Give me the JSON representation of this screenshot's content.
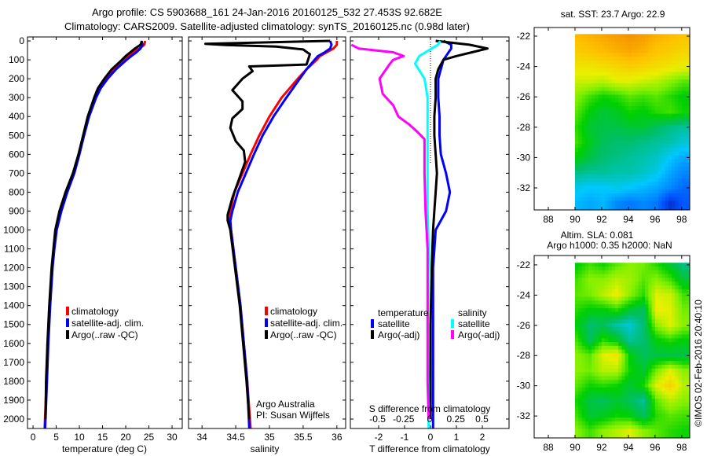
{
  "title": {
    "line1": "Argo profile: CS 5903688_161 24-Jan-2016 20160125_532 27.453S 92.682E",
    "line2": "Climatology: CARS2009. Satellite-adjusted climatology: synTS_20160125.nc (0.98d later)"
  },
  "colors": {
    "climatology": "#ff0000",
    "satellite": "#0000ff",
    "argo": "#000000",
    "s_satellite": "#00ffff",
    "s_argo": "#ff00ff"
  },
  "chart_data": [
    {
      "type": "line",
      "name": "temperature-profile",
      "xlabel": "temperature (deg C)",
      "ylabel": "depth",
      "xlim": [
        -1.2,
        32.2
      ],
      "ylim": [
        -21,
        2050
      ],
      "xticks": [
        0,
        5,
        10,
        15,
        20,
        25,
        30
      ],
      "yticks": [
        0,
        100,
        200,
        300,
        400,
        500,
        600,
        700,
        800,
        900,
        1000,
        1100,
        1200,
        1300,
        1400,
        1500,
        1600,
        1700,
        1800,
        1900,
        2000
      ],
      "legend": [
        "climatology",
        "satellite-adj. clim.",
        "Argo(..raw -QC)"
      ],
      "series": [
        {
          "name": "climatology",
          "color": "#ff0000",
          "depth": [
            0,
            20,
            40,
            60,
            80,
            100,
            150,
            200,
            250,
            300,
            400,
            500,
            600,
            700,
            800,
            900,
            1000,
            1100,
            1200,
            1400,
            1600,
            1800,
            2050
          ],
          "values": [
            24.2,
            24,
            23,
            21.5,
            20.5,
            19.5,
            17.3,
            15.6,
            14.2,
            13.3,
            11.9,
            10.9,
            9.9,
            8.7,
            7.2,
            5.9,
            4.9,
            4.5,
            4.1,
            3.6,
            3.2,
            2.9,
            2.5
          ]
        },
        {
          "name": "satellite-adj. clim.",
          "color": "#0000ff",
          "depth": [
            0,
            20,
            40,
            60,
            80,
            100,
            150,
            200,
            250,
            300,
            400,
            500,
            600,
            700,
            800,
            900,
            1000,
            1100,
            1200,
            1400,
            1600,
            1800,
            2050
          ],
          "values": [
            23.4,
            23.6,
            23.2,
            22.3,
            21.2,
            20.2,
            17.9,
            16.1,
            14.6,
            13.6,
            12.1,
            11.0,
            10.0,
            8.9,
            7.4,
            6.1,
            5.1,
            4.6,
            4.2,
            3.7,
            3.3,
            3.0,
            2.6
          ]
        },
        {
          "name": "Argo(..raw -QC)",
          "color": "#000000",
          "depth": [
            0,
            20,
            40,
            60,
            80,
            100,
            150,
            200,
            250,
            300,
            400,
            500,
            600,
            700,
            800,
            900,
            1000,
            1100,
            1200,
            1400,
            1600,
            1800,
            2000
          ],
          "values": [
            23.5,
            23.2,
            22.0,
            21.0,
            20.0,
            19.2,
            17.0,
            15.4,
            14.0,
            13.2,
            11.8,
            10.8,
            9.8,
            8.6,
            7.0,
            5.7,
            4.8,
            4.4,
            4.0,
            3.5,
            3.1,
            2.8,
            2.7
          ]
        }
      ]
    },
    {
      "type": "line",
      "name": "salinity-profile",
      "xlabel": "salinity",
      "xlim": [
        33.8,
        36.13
      ],
      "ylim": [
        -21,
        2050
      ],
      "xticks": [
        34,
        34.5,
        35,
        35.5,
        36
      ],
      "legend": [
        "climatology",
        "satellite-adj. clim.",
        "Argo(..raw -QC)"
      ],
      "annotation": [
        "Argo Australia",
        "PI: Susan Wijffels"
      ],
      "series": [
        {
          "name": "climatology",
          "color": "#ff0000",
          "depth": [
            0,
            20,
            40,
            60,
            80,
            100,
            150,
            200,
            250,
            300,
            400,
            500,
            600,
            700,
            800,
            900,
            950,
            1000,
            1200,
            1400,
            1600,
            1800,
            2050
          ],
          "values": [
            36.0,
            36.0,
            35.95,
            35.85,
            35.75,
            35.7,
            35.55,
            35.42,
            35.3,
            35.18,
            35.0,
            34.85,
            34.72,
            34.6,
            34.48,
            34.42,
            34.41,
            34.43,
            34.5,
            34.57,
            34.62,
            34.67,
            34.72
          ]
        },
        {
          "name": "satellite-adj. clim.",
          "color": "#0000ff",
          "depth": [
            0,
            20,
            40,
            60,
            80,
            100,
            150,
            200,
            250,
            300,
            400,
            500,
            600,
            700,
            800,
            900,
            950,
            1000,
            1200,
            1400,
            1600,
            1800,
            2050
          ],
          "values": [
            35.9,
            35.92,
            35.9,
            35.82,
            35.72,
            35.67,
            35.55,
            35.45,
            35.35,
            35.25,
            35.06,
            34.9,
            34.77,
            34.65,
            34.53,
            34.45,
            34.42,
            34.43,
            34.5,
            34.57,
            34.62,
            34.67,
            34.7
          ]
        },
        {
          "name": "Argo(..raw -QC)",
          "color": "#000000",
          "depth": [
            0,
            15,
            22,
            30,
            45,
            58,
            70,
            125,
            135,
            160,
            200,
            260,
            320,
            360,
            410,
            460,
            530,
            580,
            640,
            730,
            830,
            920,
            950,
            1000,
            1200,
            1400,
            1600,
            1800,
            2000
          ],
          "values": [
            35.9,
            34.05,
            34.35,
            35.1,
            35.5,
            35.55,
            35.6,
            35.55,
            34.7,
            34.75,
            34.6,
            34.45,
            34.6,
            34.6,
            34.45,
            34.42,
            34.5,
            34.62,
            34.64,
            34.55,
            34.45,
            34.38,
            34.38,
            34.42,
            34.49,
            34.56,
            34.61,
            34.66,
            34.7
          ]
        }
      ]
    },
    {
      "type": "line",
      "name": "difference-profile",
      "xlabel": "T difference from climatology",
      "x2label": "S difference from climatology",
      "xlim": [
        -3.09,
        3.03
      ],
      "x2lim": [
        -0.76,
        0.76
      ],
      "ylim": [
        -21,
        2050
      ],
      "xticks": [
        -2,
        -1,
        0,
        1,
        2
      ],
      "x2ticks": [
        -0.5,
        -0.25,
        0,
        0.25,
        0.5
      ],
      "legend": {
        "temperature_heading": "temperature",
        "salinity_heading": "salinity",
        "t_satellite": "satellite",
        "t_argo": "Argo(-adj)",
        "s_satellite": "satellite",
        "s_argo": "Argo(-adj)"
      },
      "series": [
        {
          "name": "T satellite",
          "axis": "T",
          "color": "#0000ff",
          "depth": [
            0,
            20,
            40,
            60,
            80,
            100,
            150,
            200,
            300,
            400,
            500,
            600,
            700,
            800,
            900,
            1000,
            1200,
            1500,
            1800,
            2050
          ],
          "values": [
            0.5,
            0.8,
            0.8,
            0.7,
            0.6,
            0.5,
            0.4,
            0.3,
            0.3,
            0.35,
            0.35,
            0.4,
            0.6,
            0.75,
            0.6,
            0.2,
            0.1,
            0.1,
            0.1,
            0.1
          ]
        },
        {
          "name": "T Argo(-adj)",
          "axis": "T",
          "color": "#000000",
          "depth": [
            0,
            20,
            40,
            60,
            80,
            100,
            150,
            200,
            300,
            400,
            500,
            600,
            700,
            800,
            900,
            1000,
            1200,
            1500,
            1800,
            2000
          ],
          "values": [
            0.2,
            1.5,
            2.2,
            1.6,
            1.0,
            0.5,
            0.3,
            0.2,
            0.2,
            0.15,
            0.15,
            0.2,
            0.25,
            0.2,
            0.15,
            0.1,
            0.05,
            0,
            0,
            0
          ]
        },
        {
          "name": "S satellite",
          "axis": "S",
          "color": "#00ffff",
          "depth": [
            0,
            20,
            40,
            80,
            120,
            200,
            300,
            500,
            700,
            900,
            1100,
            1500,
            2050
          ],
          "values": [
            0.1,
            0.08,
            0.02,
            -0.1,
            -0.14,
            -0.05,
            -0.02,
            -0.02,
            -0.02,
            -0.02,
            -0.01,
            -0.02,
            -0.01
          ]
        },
        {
          "name": "S Argo(-adj)",
          "axis": "S",
          "color": "#ff00ff",
          "depth": [
            20,
            40,
            60,
            80,
            100,
            120,
            200,
            280,
            340,
            400,
            440,
            480,
            520,
            600,
            700,
            900,
            1100,
            1400,
            1800,
            2000
          ],
          "values": [
            -0.75,
            -0.68,
            -0.35,
            -0.25,
            -0.35,
            -0.38,
            -0.48,
            -0.45,
            -0.35,
            -0.3,
            -0.2,
            -0.12,
            -0.05,
            -0.05,
            -0.05,
            -0.04,
            -0.02,
            -0.02,
            -0.02,
            -0.01
          ]
        }
      ]
    },
    {
      "type": "heatmap",
      "name": "sst-map",
      "title": "sat. SST: 23.7 Argo: 22.9",
      "xlim": [
        86.94,
        98.6
      ],
      "ylim": [
        -33.45,
        -21.43
      ],
      "xticks": [
        88,
        90,
        92,
        94,
        96,
        98
      ],
      "yticks": [
        -22,
        -24,
        -26,
        -28,
        -30,
        -32
      ],
      "lon": [
        90,
        91,
        92,
        93,
        94,
        95,
        96,
        97,
        98
      ],
      "lat": [
        -22,
        -23,
        -24,
        -25,
        -26,
        -27,
        -28,
        -29,
        -30,
        -31,
        -32,
        -33
      ],
      "vrange": [
        20.5,
        25.5
      ],
      "values": [
        [
          24.9,
          25.0,
          25.1,
          25.2,
          25.3,
          25.2,
          25.0,
          24.9,
          24.8
        ],
        [
          24.7,
          24.8,
          24.9,
          25.0,
          25.1,
          25.0,
          24.8,
          24.7,
          24.6
        ],
        [
          24.4,
          24.4,
          24.5,
          24.6,
          24.7,
          24.6,
          24.5,
          24.4,
          24.3
        ],
        [
          24.1,
          24.1,
          24.0,
          24.2,
          24.2,
          24.1,
          24.0,
          23.8,
          23.6
        ],
        [
          23.8,
          23.5,
          23.3,
          23.4,
          23.6,
          23.5,
          23.6,
          23.4,
          23.2
        ],
        [
          23.6,
          23.2,
          23.0,
          23.1,
          23.3,
          23.2,
          23.4,
          23.5,
          23.3
        ],
        [
          23.4,
          23.0,
          22.9,
          22.9,
          23.0,
          23.0,
          22.8,
          22.6,
          22.5
        ],
        [
          23.5,
          23.1,
          22.8,
          22.7,
          22.7,
          22.6,
          22.5,
          22.4,
          22.2
        ],
        [
          23.2,
          22.9,
          22.7,
          22.6,
          22.5,
          22.4,
          22.3,
          22.0,
          21.8
        ],
        [
          22.6,
          22.5,
          22.5,
          22.4,
          22.4,
          22.3,
          22.1,
          21.8,
          21.6
        ],
        [
          22.1,
          22.0,
          22.0,
          22.1,
          22.0,
          21.9,
          21.8,
          21.6,
          21.4
        ],
        [
          21.9,
          21.8,
          21.9,
          21.6,
          21.5,
          21.6,
          21.5,
          21.0,
          21.3
        ]
      ]
    },
    {
      "type": "heatmap",
      "name": "sla-map",
      "title": "Altim. SLA: 0.081",
      "subtitle": "Argo h1000: 0.35 h2000: NaN",
      "xlim": [
        86.94,
        98.6
      ],
      "ylim": [
        -33.45,
        -21.38
      ],
      "xticks": [
        88,
        90,
        92,
        94,
        96,
        98
      ],
      "yticks": [
        -22,
        -24,
        -26,
        -28,
        -30,
        -32
      ],
      "lon": [
        90,
        91,
        92,
        93,
        94,
        95,
        96,
        97,
        98
      ],
      "lat": [
        -22,
        -23,
        -24,
        -25,
        -26,
        -27,
        -28,
        -29,
        -30,
        -31,
        -32,
        -33
      ],
      "vrange": [
        -0.25,
        0.25
      ],
      "values": [
        [
          0.02,
          0.05,
          0.03,
          0.06,
          0.08,
          0.07,
          0.04,
          0.0,
          -0.04
        ],
        [
          0.05,
          0.08,
          0.08,
          0.1,
          0.09,
          0.06,
          0.08,
          0.05,
          0.0
        ],
        [
          0.06,
          0.07,
          0.1,
          0.13,
          0.08,
          0.04,
          0.12,
          0.11,
          0.05
        ],
        [
          0.04,
          0.02,
          0.02,
          0.04,
          0.0,
          -0.02,
          0.13,
          0.12,
          0.07
        ],
        [
          0.02,
          -0.03,
          -0.02,
          -0.06,
          -0.08,
          -0.03,
          0.08,
          0.12,
          0.08
        ],
        [
          0.05,
          -0.02,
          0.04,
          0.01,
          -0.05,
          -0.03,
          0.02,
          0.04,
          0.02
        ],
        [
          0.08,
          0.06,
          0.12,
          0.14,
          0.02,
          -0.02,
          -0.01,
          -0.01,
          -0.01
        ],
        [
          0.08,
          0.07,
          0.1,
          0.1,
          0.03,
          0.0,
          0.07,
          0.12,
          0.08
        ],
        [
          0.06,
          0.03,
          0.04,
          0.03,
          0.0,
          0.03,
          0.12,
          0.16,
          0.1
        ],
        [
          0.03,
          -0.01,
          -0.02,
          0.0,
          -0.02,
          -0.05,
          0.06,
          0.1,
          0.08
        ],
        [
          0.05,
          0.0,
          0.01,
          0.03,
          0.02,
          -0.02,
          0.04,
          0.06,
          0.05
        ],
        [
          0.08,
          0.05,
          0.08,
          0.1,
          0.12,
          0.08,
          0.06,
          0.04,
          0.03
        ]
      ]
    }
  ],
  "credit": "©IMOS 02-Feb-2016 20:40:10"
}
